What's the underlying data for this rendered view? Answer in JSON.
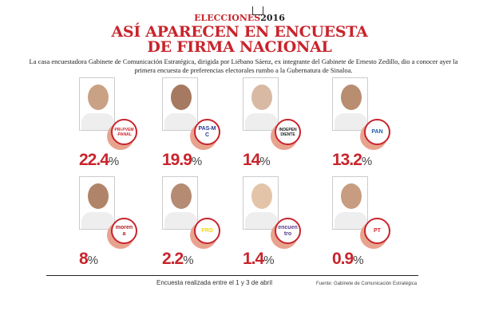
{
  "header": {
    "kicker": "ELECCIONES",
    "kicker_year": "2016",
    "title_line1": "ASÍ APARECEN EN ENCUESTA",
    "title_line2": "DE FIRMA NACIONAL",
    "intro": "La casa encuestadora Gabinete de Comunicación Estratégica, dirigida por Liébano Sáenz, ex integrante del Gabinete de Ernesto Zedillo, dio a conocer ayer la primera encuesta de preferencias electorales rumbo a la Gubernatura de Sinaloa."
  },
  "candidates": [
    {
      "party": "PRI-PVEM-PANAL",
      "value": "22.4",
      "unit": "%",
      "badge_color": "#c8242c"
    },
    {
      "party": "PAS-MC",
      "value": "19.9",
      "unit": "%",
      "badge_color": "#2b3990"
    },
    {
      "party": "INDEPENDIENTE",
      "value": "14",
      "unit": "%",
      "badge_color": "#222222"
    },
    {
      "party": "PAN",
      "value": "13.2",
      "unit": "%",
      "badge_color": "#1f5fa8"
    },
    {
      "party": "morena",
      "value": "8",
      "unit": "%",
      "badge_color": "#b01f24"
    },
    {
      "party": "PRD",
      "value": "2.2",
      "unit": "%",
      "badge_color": "#f5d90a"
    },
    {
      "party": "encuentro",
      "value": "1.4",
      "unit": "%",
      "badge_color": "#5a3c8c"
    },
    {
      "party": "PT",
      "value": "0.9",
      "unit": "%",
      "badge_color": "#d7262b"
    }
  ],
  "footer": {
    "note": "Encuesta realizada entre el 1 y 3 de abril",
    "source": "Fuente: Gabinete de Comunicación Estratégica"
  }
}
